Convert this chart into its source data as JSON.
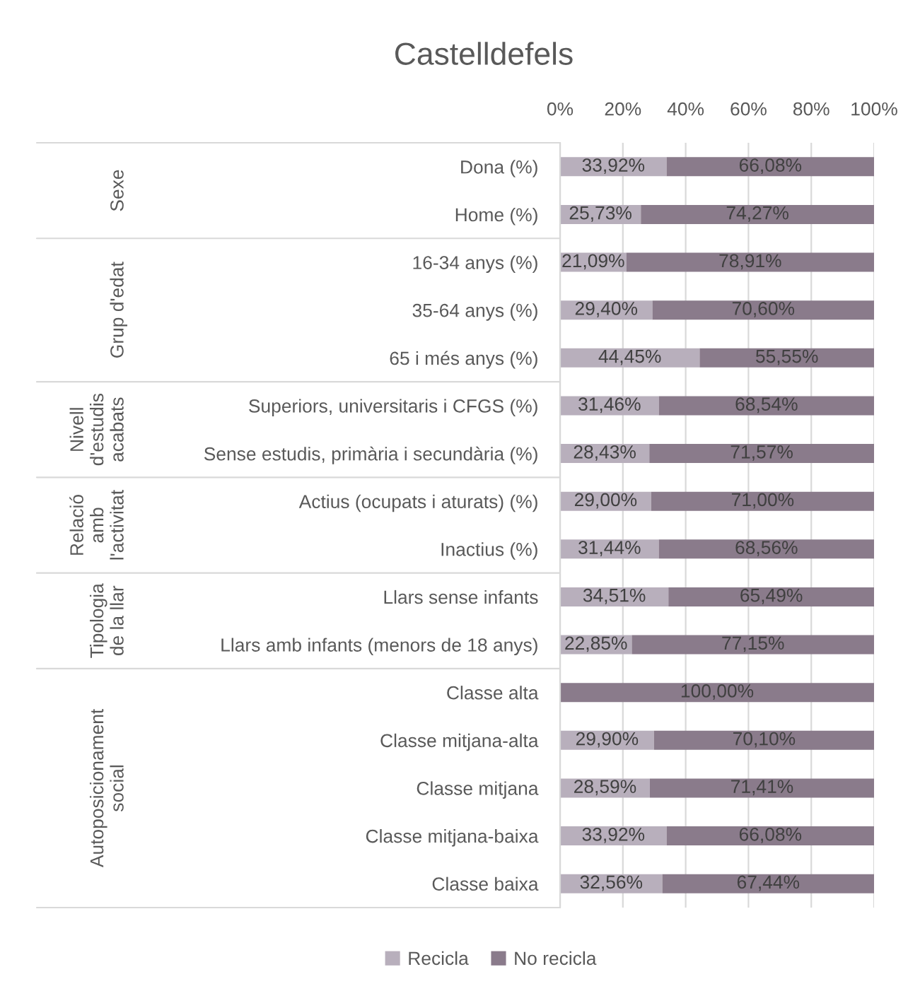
{
  "chart_data": {
    "type": "bar",
    "orientation": "horizontal",
    "stacked": true,
    "title": "Castelldefels",
    "categories": [
      "Dona (%)",
      "Home (%)",
      "16-34 anys (%)",
      "35-64 anys (%)",
      "65 i més anys (%)",
      "Superiors, universitaris i CFGS (%)",
      "Sense estudis, primària i secundària (%)",
      "Actius (ocupats i aturats) (%)",
      "Inactius (%)",
      "Llars sense infants",
      "Llars amb infants (menors de 18 anys)",
      "Classe alta",
      "Classe mitjana-alta",
      "Classe mitjana",
      "Classe mitjana-baixa",
      "Classe baixa"
    ],
    "series": [
      {
        "name": "Recicla",
        "color": "#b8afbc",
        "values": [
          33.92,
          25.73,
          21.09,
          29.4,
          44.45,
          31.46,
          28.43,
          29.0,
          31.44,
          34.51,
          22.85,
          0,
          29.9,
          28.59,
          33.92,
          32.56
        ],
        "value_labels": [
          "33,92%",
          "25,73%",
          "21,09%",
          "29,40%",
          "44,45%",
          "31,46%",
          "28,43%",
          "29,00%",
          "31,44%",
          "34,51%",
          "22,85%",
          null,
          "29,90%",
          "28,59%",
          "33,92%",
          "32,56%"
        ]
      },
      {
        "name": "No recicla",
        "color": "#8a7b8b",
        "values": [
          66.08,
          74.27,
          78.91,
          70.6,
          55.55,
          68.54,
          71.57,
          71.0,
          68.56,
          65.49,
          77.15,
          100.0,
          70.1,
          71.41,
          66.08,
          67.44
        ],
        "value_labels": [
          "66,08%",
          "74,27%",
          "78,91%",
          "70,60%",
          "55,55%",
          "68,54%",
          "71,57%",
          "71,00%",
          "68,56%",
          "65,49%",
          "77,15%",
          "100,00%",
          "70,10%",
          "71,41%",
          "66,08%",
          "67,44%"
        ]
      }
    ],
    "xlim": [
      0,
      100
    ],
    "xticks": [
      {
        "value": 0,
        "label": "0%"
      },
      {
        "value": 20,
        "label": "20%"
      },
      {
        "value": 40,
        "label": "40%"
      },
      {
        "value": 60,
        "label": "60%"
      },
      {
        "value": 80,
        "label": "80%"
      },
      {
        "value": 100,
        "label": "100%"
      }
    ],
    "grid": "x",
    "legend": "bottom",
    "annotations": [
      "Sexe",
      "Grup d'edat",
      "Nivell\nd'estudis\nacabats",
      "Relació\namb\nl'activitat",
      "Tipologia\nde la llar",
      "Autoposicionament\nsocial"
    ]
  }
}
